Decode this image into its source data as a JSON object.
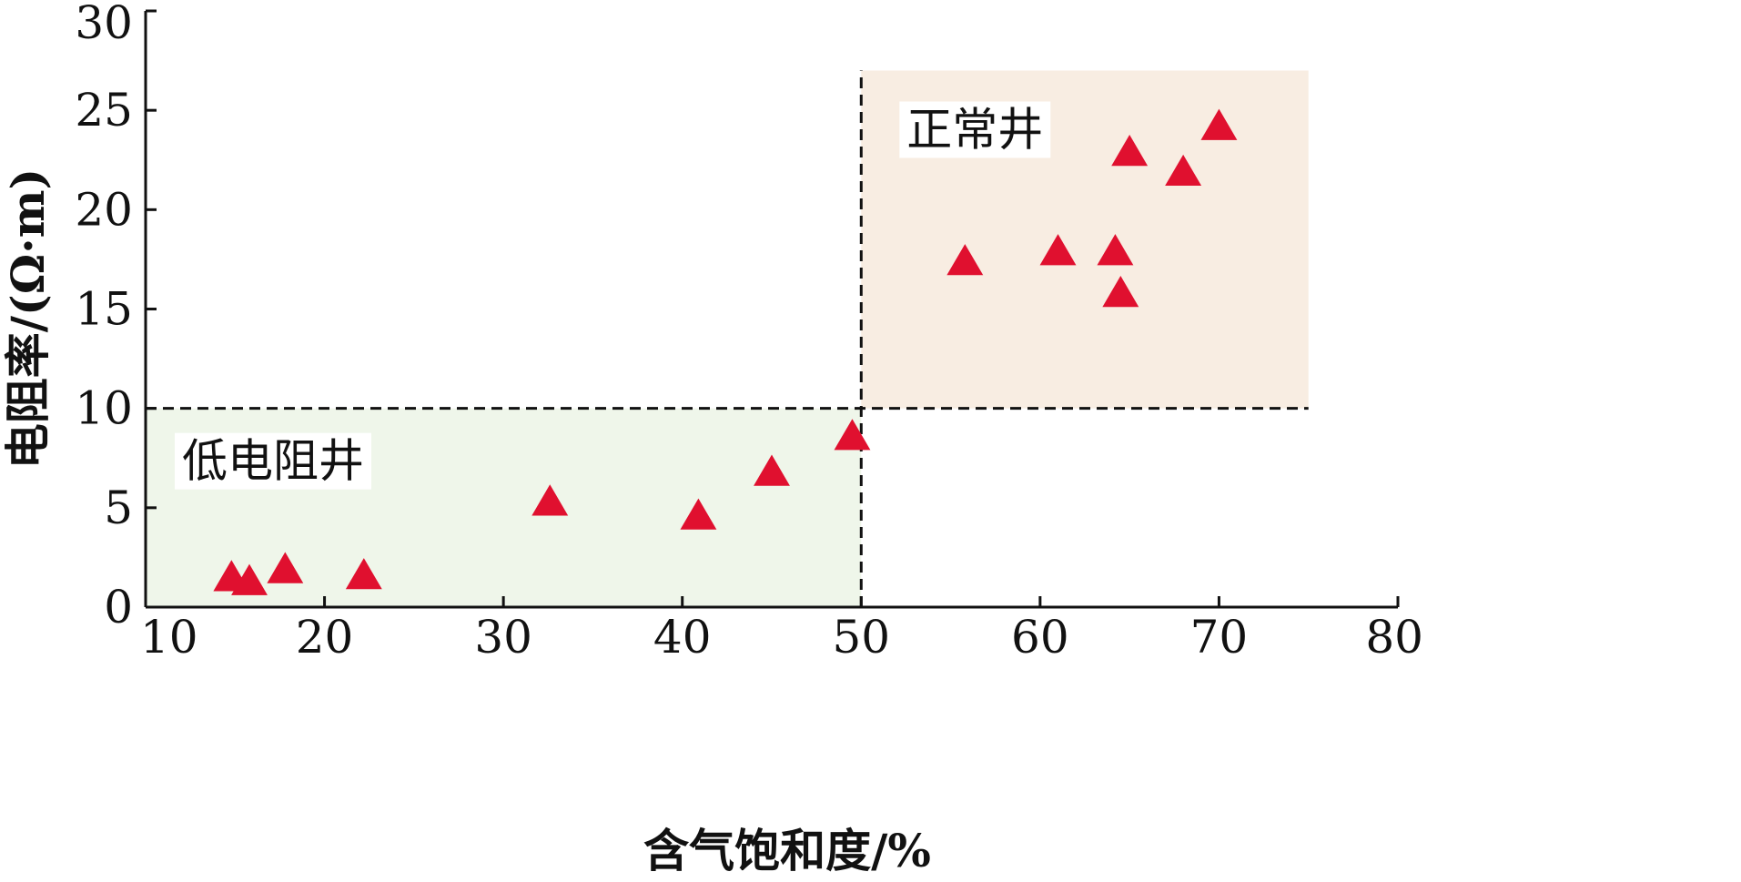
{
  "chart_data": {
    "type": "scatter",
    "xlabel": "含气饱和度/%",
    "ylabel": "电阻率/(Ω·m)",
    "xlim": [
      10,
      80
    ],
    "ylim": [
      0,
      30
    ],
    "x_ticks": [
      "10",
      "20",
      "30",
      "40",
      "50",
      "60",
      "70",
      "80"
    ],
    "y_ticks": [
      "0",
      "5",
      "10",
      "15",
      "20",
      "25",
      "30"
    ],
    "grid": false,
    "marker": "triangle",
    "marker_color": "#e0102f",
    "points": [
      {
        "x": 14.8,
        "y": 1.5
      },
      {
        "x": 15.8,
        "y": 1.3
      },
      {
        "x": 17.8,
        "y": 1.9
      },
      {
        "x": 22.2,
        "y": 1.6
      },
      {
        "x": 32.6,
        "y": 5.3
      },
      {
        "x": 40.9,
        "y": 4.6
      },
      {
        "x": 45.0,
        "y": 6.8
      },
      {
        "x": 49.5,
        "y": 8.6
      },
      {
        "x": 55.8,
        "y": 17.4
      },
      {
        "x": 61.0,
        "y": 17.9
      },
      {
        "x": 64.2,
        "y": 17.9
      },
      {
        "x": 64.5,
        "y": 15.8
      },
      {
        "x": 65.0,
        "y": 22.9
      },
      {
        "x": 68.0,
        "y": 21.9
      },
      {
        "x": 70.0,
        "y": 24.2
      }
    ],
    "regions": [
      {
        "label": "低电阻井",
        "x": [
          10,
          50
        ],
        "y": [
          0,
          10
        ],
        "color": "#eff6ea"
      },
      {
        "label": "正常井",
        "x": [
          50,
          75
        ],
        "y": [
          10,
          27
        ],
        "color": "#f8ede2"
      }
    ],
    "threshold_lines": [
      {
        "orientation": "horizontal",
        "value": 10,
        "from": 10,
        "to": 75
      },
      {
        "orientation": "vertical",
        "value": 50,
        "from": 0,
        "to": 27
      }
    ]
  }
}
